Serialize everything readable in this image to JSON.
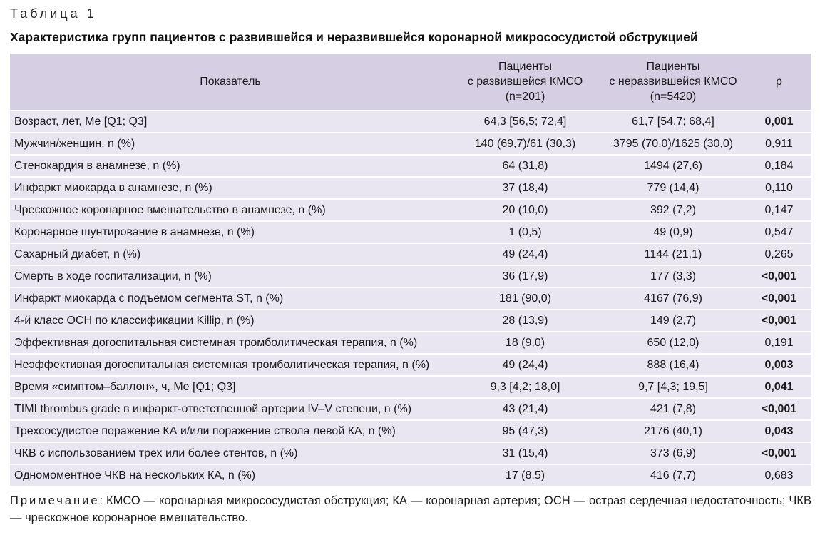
{
  "table_label": "Таблица 1",
  "table_title": "Характеристика групп пациентов с развившейся и неразвившейся коронарной микрососудистой обструкцией",
  "header": {
    "col1": "Показатель",
    "col2": [
      "Пациенты",
      "с развившейся КМСО",
      "(n=201)"
    ],
    "col3": [
      "Пациенты",
      "с неразвившейся КМСО",
      "(n=5420)"
    ],
    "col4": "p"
  },
  "rows": [
    {
      "name": "Возраст, лет, Me [Q1; Q3]",
      "g1": "64,3 [56,5; 72,4]",
      "g2": "61,7 [54,7; 68,4]",
      "p": "0,001",
      "bold": true
    },
    {
      "name": "Мужчин/женщин, n (%)",
      "g1": "140 (69,7)/61 (30,3)",
      "g2": "3795 (70,0)/1625 (30,0)",
      "p": "0,911",
      "bold": false
    },
    {
      "name": "Стенокардия в анамнезе, n (%)",
      "g1": "64 (31,8)",
      "g2": "1494 (27,6)",
      "p": "0,184",
      "bold": false
    },
    {
      "name": "Инфаркт миокарда в анамнезе, n (%)",
      "g1": "37 (18,4)",
      "g2": "779 (14,4)",
      "p": "0,110",
      "bold": false
    },
    {
      "name": "Чрескожное коронарное вмешательство в анамнезе, n (%)",
      "g1": "20 (10,0)",
      "g2": "392 (7,2)",
      "p": "0,147",
      "bold": false
    },
    {
      "name": "Коронарное шунтирование в анамнезе, n (%)",
      "g1": "1 (0,5)",
      "g2": "49 (0,9)",
      "p": "0,547",
      "bold": false
    },
    {
      "name": "Сахарный диабет, n (%)",
      "g1": "49 (24,4)",
      "g2": "1144 (21,1)",
      "p": "0,265",
      "bold": false
    },
    {
      "name": "Смерть в ходе госпитализации, n (%)",
      "g1": "36 (17,9)",
      "g2": "177 (3,3)",
      "p": "<0,001",
      "bold": true
    },
    {
      "name": "Инфаркт миокарда с подъемом сегмента ST, n (%)",
      "g1": "181 (90,0)",
      "g2": "4167 (76,9)",
      "p": "<0,001",
      "bold": true
    },
    {
      "name": "4-й класс ОСН по классификации Killip, n (%)",
      "g1": "28 (13,9)",
      "g2": "149 (2,7)",
      "p": "<0,001",
      "bold": true
    },
    {
      "name": "Эффективная догоспитальная системная тромболитическая терапия, n (%)",
      "g1": "18 (9,0)",
      "g2": "650 (12,0)",
      "p": "0,191",
      "bold": false
    },
    {
      "name": "Неэффективная догоспитальная системная тромболитическая терапия, n (%)",
      "g1": "49 (24,4)",
      "g2": "888 (16,4)",
      "p": "0,003",
      "bold": true
    },
    {
      "name": "Время «симптом–баллон», ч, Me [Q1; Q3]",
      "g1": "9,3 [4,2; 18,0]",
      "g2": "9,7 [4,3; 19,5]",
      "p": "0,041",
      "bold": true
    },
    {
      "name": "TIMI thrombus grade в инфаркт-ответственной артерии IV–V степени, n (%)",
      "g1": "43 (21,4)",
      "g2": "421 (7,8)",
      "p": "<0,001",
      "bold": true
    },
    {
      "name": "Трехсосудистое поражение КА и/или поражение ствола левой КА, n (%)",
      "g1": "95 (47,3)",
      "g2": "2176 (40,1)",
      "p": "0,043",
      "bold": true
    },
    {
      "name": "ЧКВ с использованием трех или более стентов, n (%)",
      "g1": "31 (15,4)",
      "g2": "373 (6,9)",
      "p": "<0,001",
      "bold": true
    },
    {
      "name": "Одномоментное ЧКВ на нескольких КА, n (%)",
      "g1": "17 (8,5)",
      "g2": "416 (7,7)",
      "p": "0,683",
      "bold": false
    }
  ],
  "note": {
    "label": "Примечание",
    "text": ": КМСО — коронарная микрососудистая обструкция; КА — коронарная артерия; ОСН — острая сердечная недостаточность; ЧКВ — чрескожное коронарное вмешательство."
  }
}
